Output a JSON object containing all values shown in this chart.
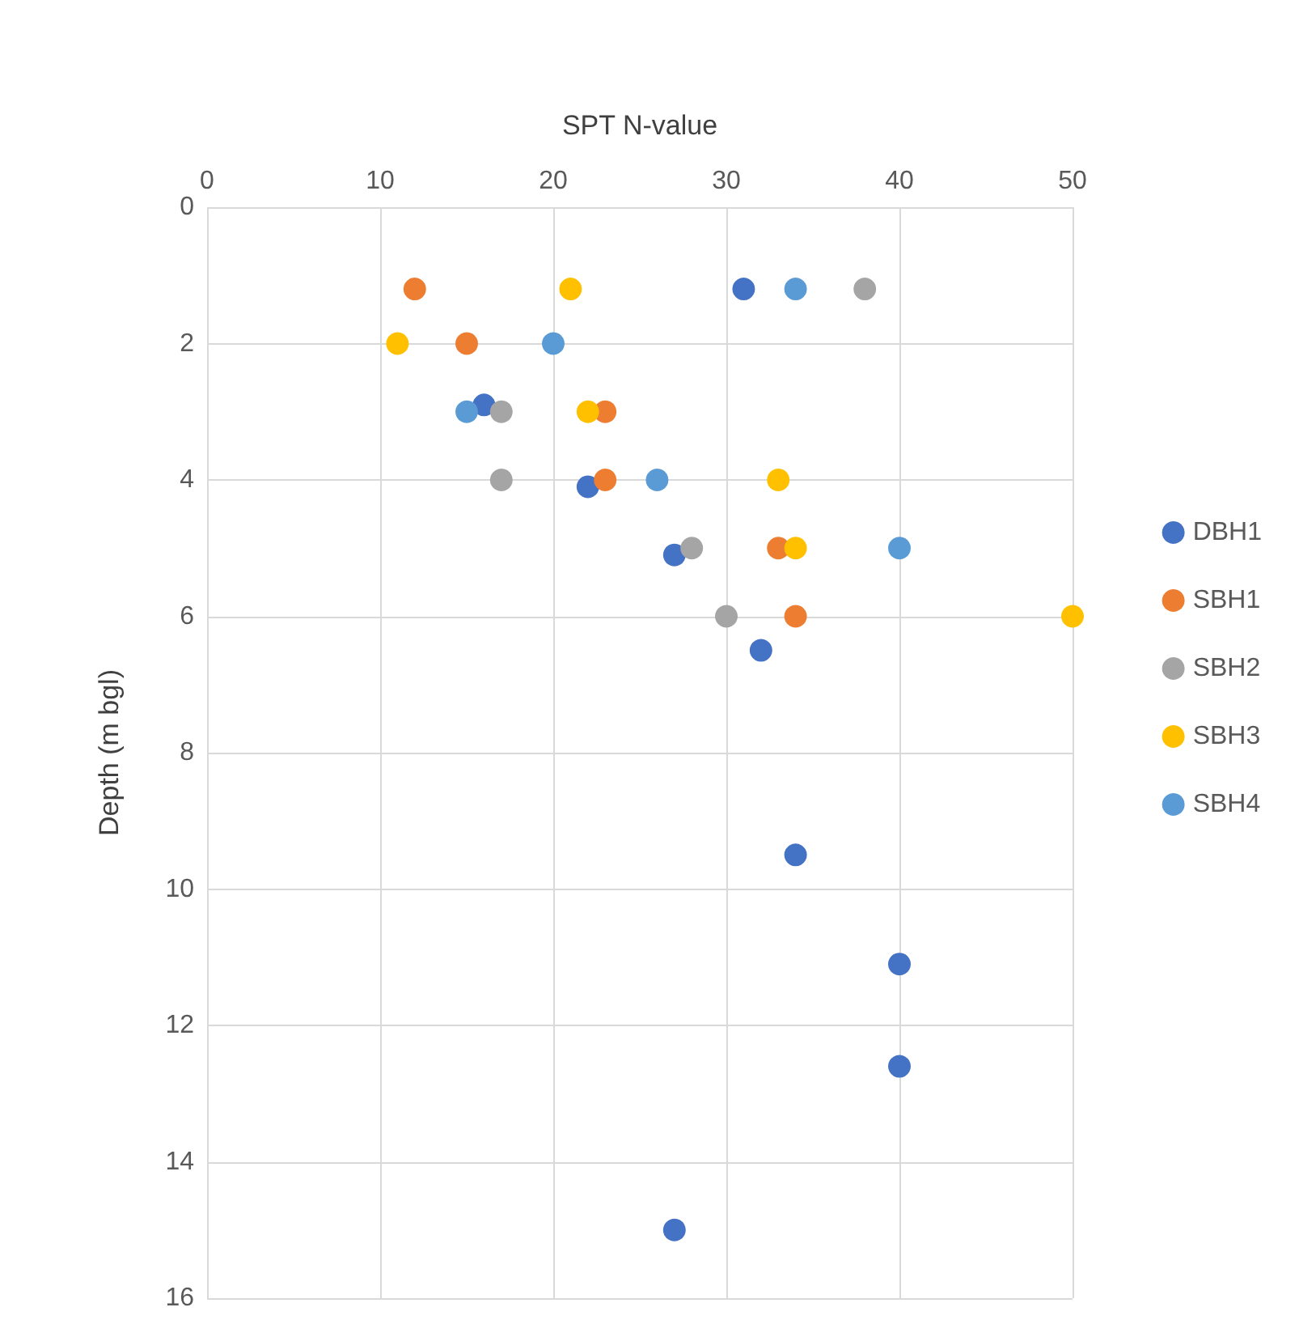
{
  "chart_data": {
    "type": "scatter",
    "xlabel": "SPT N-value",
    "ylabel": "Depth (m bgl)",
    "xlim": [
      0,
      50
    ],
    "xticks": [
      0,
      10,
      20,
      30,
      40,
      50
    ],
    "ylim": [
      16,
      0
    ],
    "yticks": [
      0,
      2,
      4,
      6,
      8,
      10,
      12,
      14,
      16
    ],
    "grid": true,
    "legend": "right",
    "marker": "circle",
    "series": [
      {
        "name": "DBH1",
        "color": "#4472c4",
        "x": [
          31,
          16,
          22,
          27,
          32,
          34,
          40,
          40,
          27
        ],
        "values": [
          1.2,
          2.9,
          4.1,
          5.1,
          6.5,
          9.5,
          11.1,
          12.6,
          15.0
        ]
      },
      {
        "name": "SBH1",
        "color": "#ed7d31",
        "x": [
          12,
          15,
          23,
          23,
          33,
          34
        ],
        "values": [
          1.2,
          2.0,
          3.0,
          4.0,
          5.0,
          6.0
        ]
      },
      {
        "name": "SBH2",
        "color": "#a5a5a5",
        "x": [
          38,
          17,
          17,
          28,
          30
        ],
        "values": [
          1.2,
          3.0,
          4.0,
          5.0,
          6.0
        ]
      },
      {
        "name": "SBH3",
        "color": "#ffc000",
        "x": [
          21,
          11,
          22,
          33,
          34,
          50
        ],
        "values": [
          1.2,
          2.0,
          3.0,
          4.0,
          5.0,
          6.0
        ]
      },
      {
        "name": "SBH4",
        "color": "#5b9bd5",
        "x": [
          34,
          20,
          15,
          26,
          40
        ],
        "values": [
          1.2,
          2.0,
          3.0,
          4.0,
          5.0
        ]
      }
    ]
  }
}
